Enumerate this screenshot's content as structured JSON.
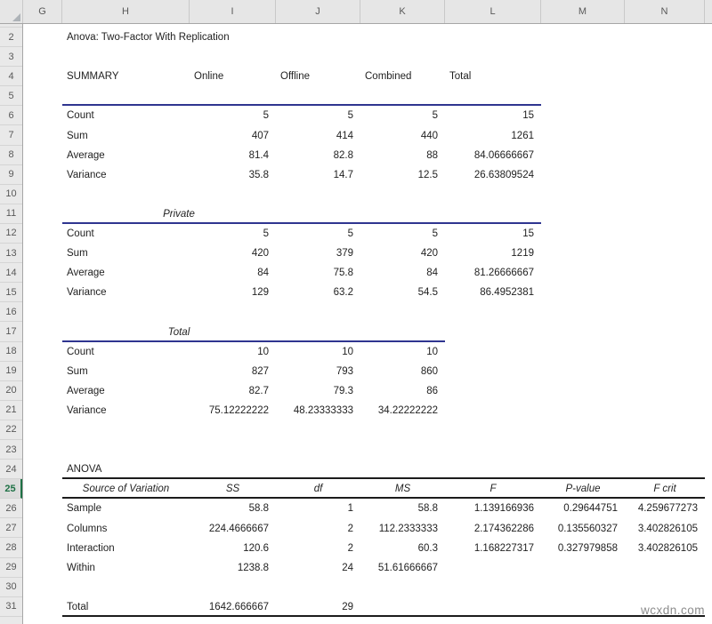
{
  "app": {
    "watermark": "wcxdn.com"
  },
  "colors": {
    "accent_line": "#2F3590",
    "dark_line": "#1C1C1C",
    "active_row_green": "#1E7145"
  },
  "grid": {
    "column_letters": [
      "G",
      "H",
      "I",
      "J",
      "K",
      "L",
      "M",
      "N"
    ],
    "row_numbers": [
      "2",
      "3",
      "4",
      "5",
      "6",
      "7",
      "8",
      "9",
      "10",
      "11",
      "12",
      "13",
      "14",
      "15",
      "16",
      "17",
      "18",
      "19",
      "20",
      "21",
      "22",
      "23",
      "24",
      "25",
      "26",
      "27",
      "28",
      "29",
      "30",
      "31"
    ],
    "active_row": "25"
  },
  "sheet": {
    "title": "Anova: Two-Factor With Replication",
    "rows": [
      {
        "row": "2",
        "cells": [
          {
            "col": "H",
            "text": "Anova: Two-Factor With Replication"
          }
        ]
      },
      {
        "row": "4",
        "cells": [
          {
            "col": "H",
            "text": "SUMMARY"
          },
          {
            "col": "I",
            "text": "Online"
          },
          {
            "col": "J",
            "text": "Offline"
          },
          {
            "col": "K",
            "text": "Combined"
          },
          {
            "col": "L",
            "text": "Total"
          }
        ]
      },
      {
        "row": "6",
        "cells": [
          {
            "col": "H",
            "text": "Count"
          },
          {
            "col": "I",
            "text": "5"
          },
          {
            "col": "J",
            "text": "5"
          },
          {
            "col": "K",
            "text": "5"
          },
          {
            "col": "L",
            "text": "15"
          }
        ]
      },
      {
        "row": "7",
        "cells": [
          {
            "col": "H",
            "text": "Sum"
          },
          {
            "col": "I",
            "text": "407"
          },
          {
            "col": "J",
            "text": "414"
          },
          {
            "col": "K",
            "text": "440"
          },
          {
            "col": "L",
            "text": "1261"
          }
        ]
      },
      {
        "row": "8",
        "cells": [
          {
            "col": "H",
            "text": "Average"
          },
          {
            "col": "I",
            "text": "81.4"
          },
          {
            "col": "J",
            "text": "82.8"
          },
          {
            "col": "K",
            "text": "88"
          },
          {
            "col": "L",
            "text": "84.06666667"
          }
        ]
      },
      {
        "row": "9",
        "cells": [
          {
            "col": "H",
            "text": "Variance"
          },
          {
            "col": "I",
            "text": "35.8"
          },
          {
            "col": "J",
            "text": "14.7"
          },
          {
            "col": "K",
            "text": "12.5"
          },
          {
            "col": "L",
            "text": "26.63809524"
          }
        ]
      },
      {
        "row": "11",
        "cells": [
          {
            "col": "HI",
            "text": "Private",
            "italic": true,
            "align": "center"
          }
        ]
      },
      {
        "row": "12",
        "cells": [
          {
            "col": "H",
            "text": "Count"
          },
          {
            "col": "I",
            "text": "5"
          },
          {
            "col": "J",
            "text": "5"
          },
          {
            "col": "K",
            "text": "5"
          },
          {
            "col": "L",
            "text": "15"
          }
        ]
      },
      {
        "row": "13",
        "cells": [
          {
            "col": "H",
            "text": "Sum"
          },
          {
            "col": "I",
            "text": "420"
          },
          {
            "col": "J",
            "text": "379"
          },
          {
            "col": "K",
            "text": "420"
          },
          {
            "col": "L",
            "text": "1219"
          }
        ]
      },
      {
        "row": "14",
        "cells": [
          {
            "col": "H",
            "text": "Average"
          },
          {
            "col": "I",
            "text": "84"
          },
          {
            "col": "J",
            "text": "75.8"
          },
          {
            "col": "K",
            "text": "84"
          },
          {
            "col": "L",
            "text": "81.26666667"
          }
        ]
      },
      {
        "row": "15",
        "cells": [
          {
            "col": "H",
            "text": "Variance"
          },
          {
            "col": "I",
            "text": "129"
          },
          {
            "col": "J",
            "text": "63.2"
          },
          {
            "col": "K",
            "text": "54.5"
          },
          {
            "col": "L",
            "text": "86.4952381"
          }
        ]
      },
      {
        "row": "17",
        "cells": [
          {
            "col": "HI",
            "text": "Total",
            "italic": true,
            "align": "center"
          }
        ]
      },
      {
        "row": "18",
        "cells": [
          {
            "col": "H",
            "text": "Count"
          },
          {
            "col": "I",
            "text": "10"
          },
          {
            "col": "J",
            "text": "10"
          },
          {
            "col": "K",
            "text": "10"
          }
        ]
      },
      {
        "row": "19",
        "cells": [
          {
            "col": "H",
            "text": "Sum"
          },
          {
            "col": "I",
            "text": "827"
          },
          {
            "col": "J",
            "text": "793"
          },
          {
            "col": "K",
            "text": "860"
          }
        ]
      },
      {
        "row": "20",
        "cells": [
          {
            "col": "H",
            "text": "Average"
          },
          {
            "col": "I",
            "text": "82.7"
          },
          {
            "col": "J",
            "text": "79.3"
          },
          {
            "col": "K",
            "text": "86"
          }
        ]
      },
      {
        "row": "21",
        "cells": [
          {
            "col": "H",
            "text": "Variance"
          },
          {
            "col": "I",
            "text": "75.12222222"
          },
          {
            "col": "J",
            "text": "48.23333333"
          },
          {
            "col": "K",
            "text": "34.22222222"
          }
        ]
      },
      {
        "row": "24",
        "cells": [
          {
            "col": "H",
            "text": "ANOVA"
          }
        ]
      },
      {
        "row": "25",
        "cells": [
          {
            "col": "H",
            "text": "Source of Variation",
            "italic": true,
            "align": "center"
          },
          {
            "col": "I",
            "text": "SS",
            "italic": true,
            "align": "center"
          },
          {
            "col": "J",
            "text": "df",
            "italic": true,
            "align": "center"
          },
          {
            "col": "K",
            "text": "MS",
            "italic": true,
            "align": "center"
          },
          {
            "col": "L",
            "text": "F",
            "italic": true,
            "align": "center"
          },
          {
            "col": "M",
            "text": "P-value",
            "italic": true,
            "align": "center"
          },
          {
            "col": "N",
            "text": "F crit",
            "italic": true,
            "align": "center"
          }
        ]
      },
      {
        "row": "26",
        "cells": [
          {
            "col": "H",
            "text": "Sample"
          },
          {
            "col": "I",
            "text": "58.8"
          },
          {
            "col": "J",
            "text": "1"
          },
          {
            "col": "K",
            "text": "58.8"
          },
          {
            "col": "L",
            "text": "1.139166936"
          },
          {
            "col": "M",
            "text": "0.29644751"
          },
          {
            "col": "N",
            "text": "4.259677273"
          }
        ]
      },
      {
        "row": "27",
        "cells": [
          {
            "col": "H",
            "text": "Columns"
          },
          {
            "col": "I",
            "text": "224.4666667"
          },
          {
            "col": "J",
            "text": "2"
          },
          {
            "col": "K",
            "text": "112.2333333"
          },
          {
            "col": "L",
            "text": "2.174362286"
          },
          {
            "col": "M",
            "text": "0.135560327"
          },
          {
            "col": "N",
            "text": "3.402826105"
          }
        ]
      },
      {
        "row": "28",
        "cells": [
          {
            "col": "H",
            "text": "Interaction"
          },
          {
            "col": "I",
            "text": "120.6"
          },
          {
            "col": "J",
            "text": "2"
          },
          {
            "col": "K",
            "text": "60.3"
          },
          {
            "col": "L",
            "text": "1.168227317"
          },
          {
            "col": "M",
            "text": "0.327979858"
          },
          {
            "col": "N",
            "text": "3.402826105"
          }
        ]
      },
      {
        "row": "29",
        "cells": [
          {
            "col": "H",
            "text": "Within"
          },
          {
            "col": "I",
            "text": "1238.8"
          },
          {
            "col": "J",
            "text": "24"
          },
          {
            "col": "K",
            "text": "51.61666667"
          }
        ]
      },
      {
        "row": "31",
        "cells": [
          {
            "col": "H",
            "text": "Total"
          },
          {
            "col": "I",
            "text": "1642.666667"
          },
          {
            "col": "J",
            "text": "29"
          }
        ]
      }
    ],
    "rules": [
      {
        "after_row": "5",
        "from": "H",
        "to": "L",
        "color": "accent"
      },
      {
        "after_row": "11",
        "from": "H",
        "to": "L",
        "color": "accent"
      },
      {
        "after_row": "17",
        "from": "H",
        "to": "K",
        "color": "accent"
      },
      {
        "after_row": "24",
        "from": "H",
        "to": "N",
        "color": "dark"
      },
      {
        "after_row": "25",
        "from": "H",
        "to": "N",
        "color": "dark"
      },
      {
        "after_row": "31",
        "from": "H",
        "to": "N",
        "color": "dark"
      }
    ]
  }
}
